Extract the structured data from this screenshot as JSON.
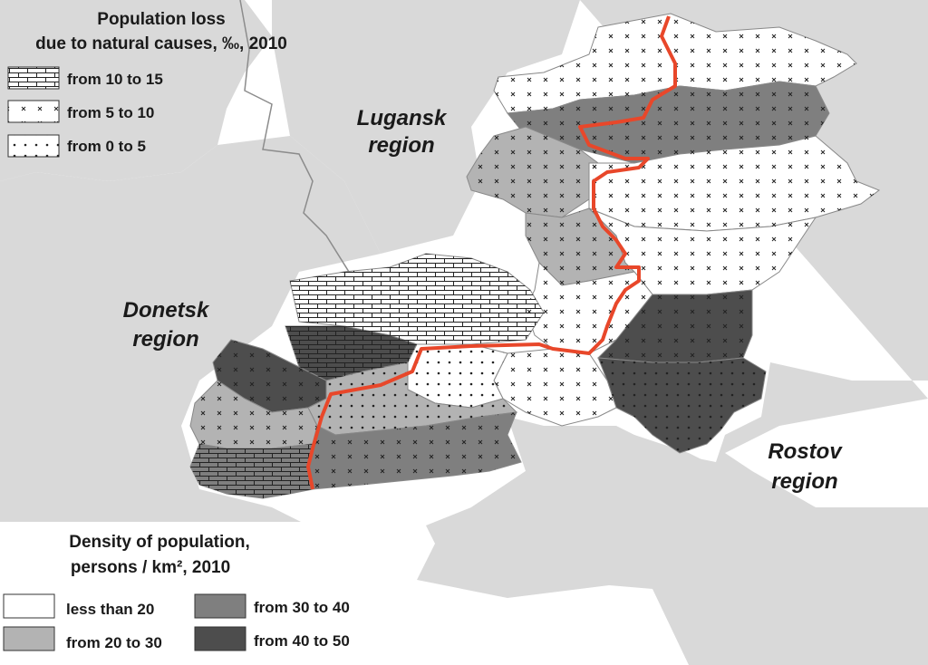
{
  "legend_loss": {
    "title_line1": "Population loss",
    "title_line2": "due to natural causes, ‰, 2010",
    "items": [
      {
        "label": "from 10 to 15",
        "pattern": "bricks"
      },
      {
        "label": "from 5 to 10",
        "pattern": "crosses"
      },
      {
        "label": "from 0 to 5",
        "pattern": "dots"
      }
    ]
  },
  "legend_density": {
    "title_line1": "Density of population,",
    "title_line2": "persons / km²,  2010",
    "items": [
      {
        "label": "less than 20",
        "color": "#ffffff"
      },
      {
        "label": "from 20 to 30",
        "color": "#b3b3b3"
      },
      {
        "label": "from 30 to 40",
        "color": "#7f7f7f"
      },
      {
        "label": "from 40 to 50",
        "color": "#4d4d4d"
      }
    ]
  },
  "regions": {
    "lugansk_line1": "Lugansk",
    "lugansk_line2": "region",
    "donetsk_line1": "Donetsk",
    "donetsk_line2": "region",
    "rostov_line1": "Rostov",
    "rostov_line2": "region"
  },
  "colors": {
    "background_land": "#d9d9d9",
    "border_line": "#e8472a",
    "state_border": "#8c8c8c"
  }
}
